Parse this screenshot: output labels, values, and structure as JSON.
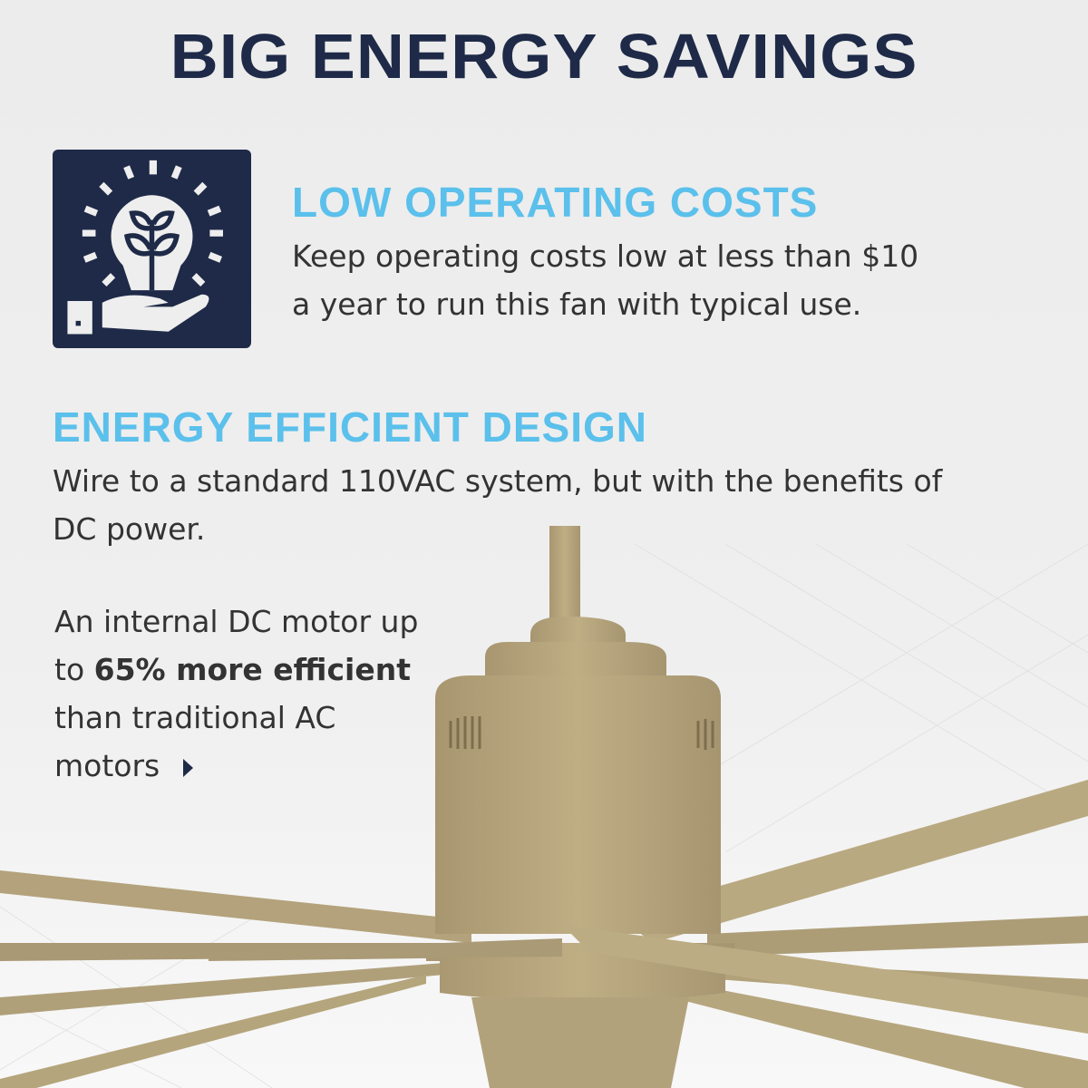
{
  "title": "BIG ENERGY SAVINGS",
  "section1": {
    "icon": "lightbulb-plant-hand-icon",
    "heading": "LOW OPERATING COSTS",
    "lines": [
      "Keep operating costs low at less than $10",
      "a year to run this fan with typical use."
    ]
  },
  "section2": {
    "heading": "ENERGY EFFICIENT DESIGN",
    "lines": [
      "Wire to a standard 110VAC system, but with the benefits of",
      "DC power."
    ]
  },
  "callout": {
    "line1": "An internal DC motor up",
    "line2_prefix": "to ",
    "line2_bold": "65% more efficient",
    "line3": "than traditional AC",
    "line4": "motors",
    "arrow_icon": "caret-right-icon"
  },
  "colors": {
    "title": "#1e2a47",
    "accent": "#5bc0eb",
    "fan": "#b5a57c"
  }
}
